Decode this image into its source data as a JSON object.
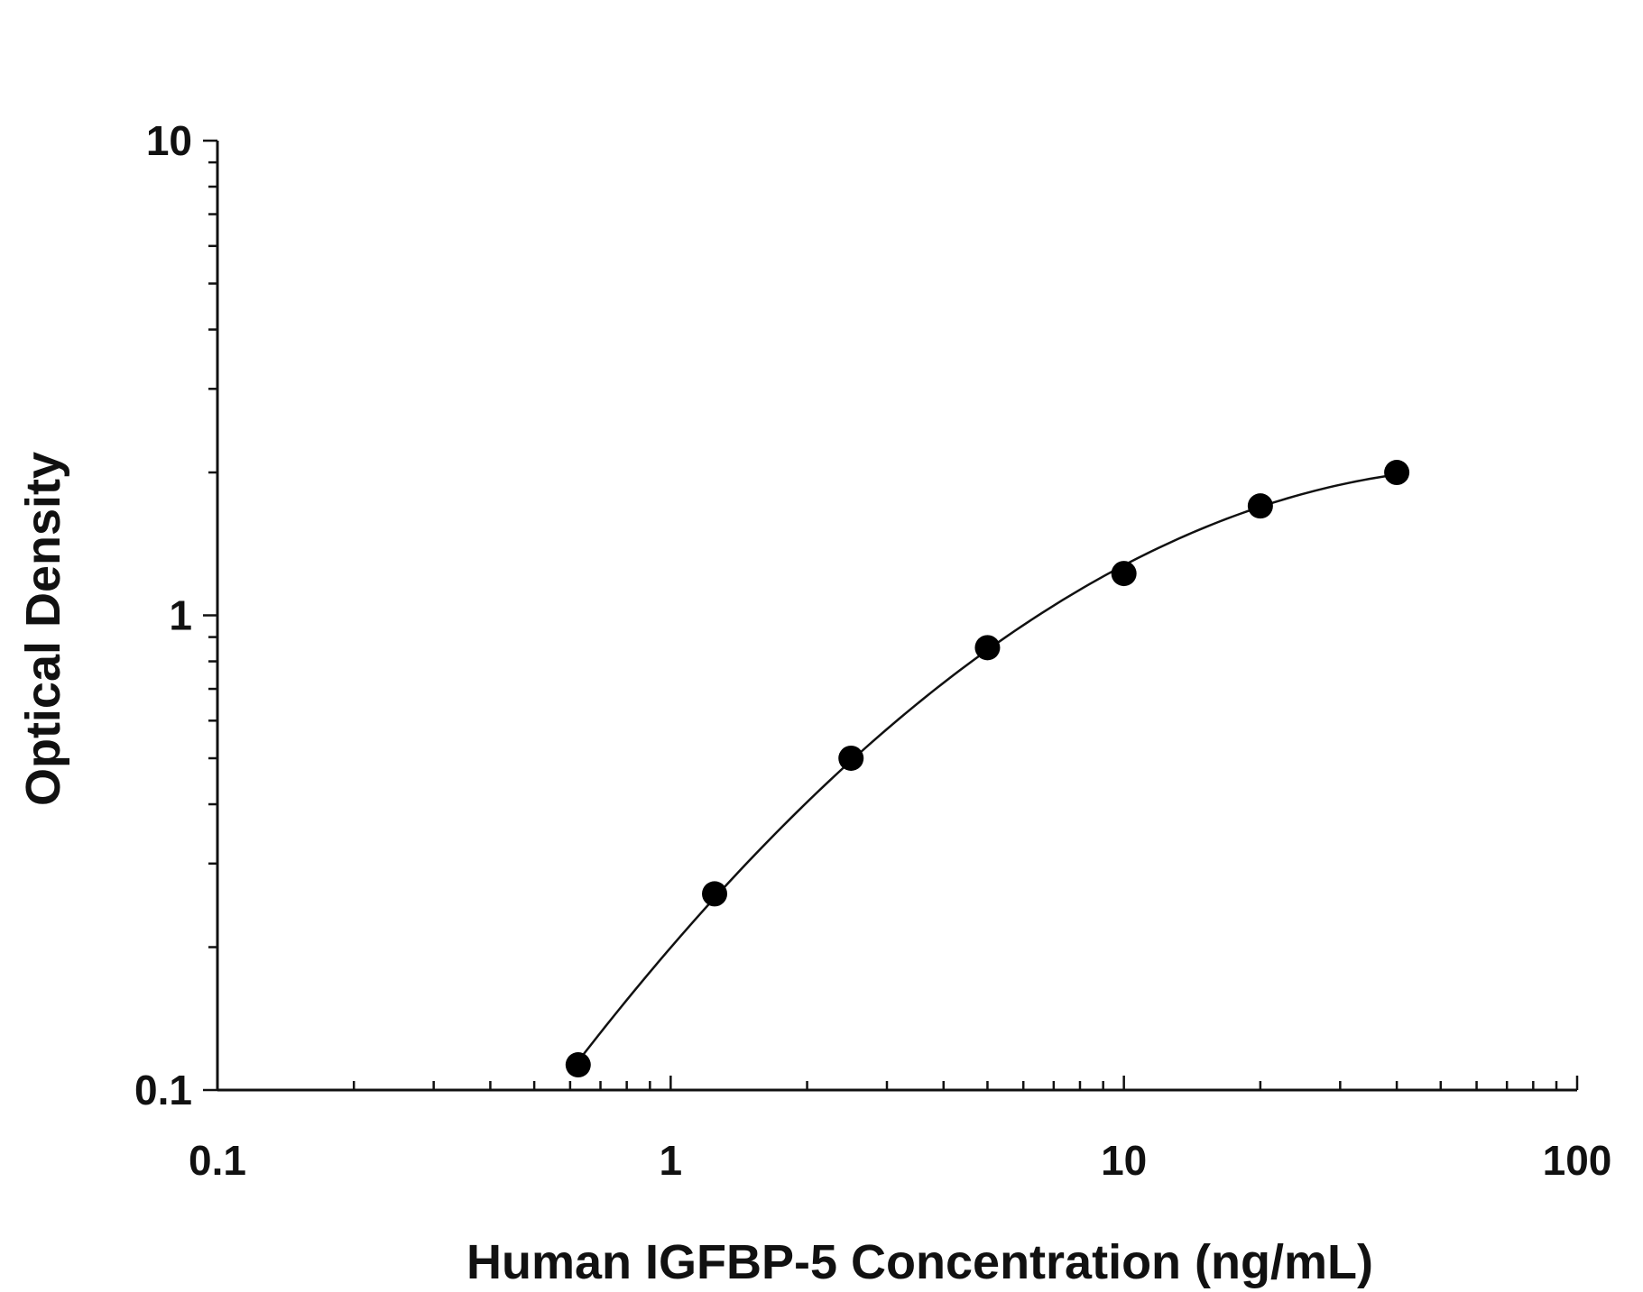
{
  "chart_data": {
    "type": "scatter",
    "title": "",
    "xlabel": "Human IGFBP-5 Concentration (ng/mL)",
    "ylabel": "Optical Density",
    "xscale": "log",
    "yscale": "log",
    "xlim": [
      0.1,
      100
    ],
    "ylim": [
      0.1,
      10
    ],
    "x_ticks": [
      0.1,
      1,
      10,
      100
    ],
    "x_tick_labels": [
      "0.1",
      "1",
      "10",
      "100"
    ],
    "y_ticks": [
      0.1,
      1,
      10
    ],
    "y_tick_labels": [
      "0.1",
      "1",
      "10"
    ],
    "grid": false,
    "legend": "none",
    "marker_color": "#000000",
    "line_color": "#111111",
    "fit_line": "smooth curve through points",
    "series": [
      {
        "x": [
          0.625,
          1.25,
          2.5,
          5,
          10,
          20,
          40
        ],
        "y": [
          0.113,
          0.259,
          0.5,
          0.855,
          1.225,
          1.7,
          2.0
        ]
      }
    ]
  }
}
